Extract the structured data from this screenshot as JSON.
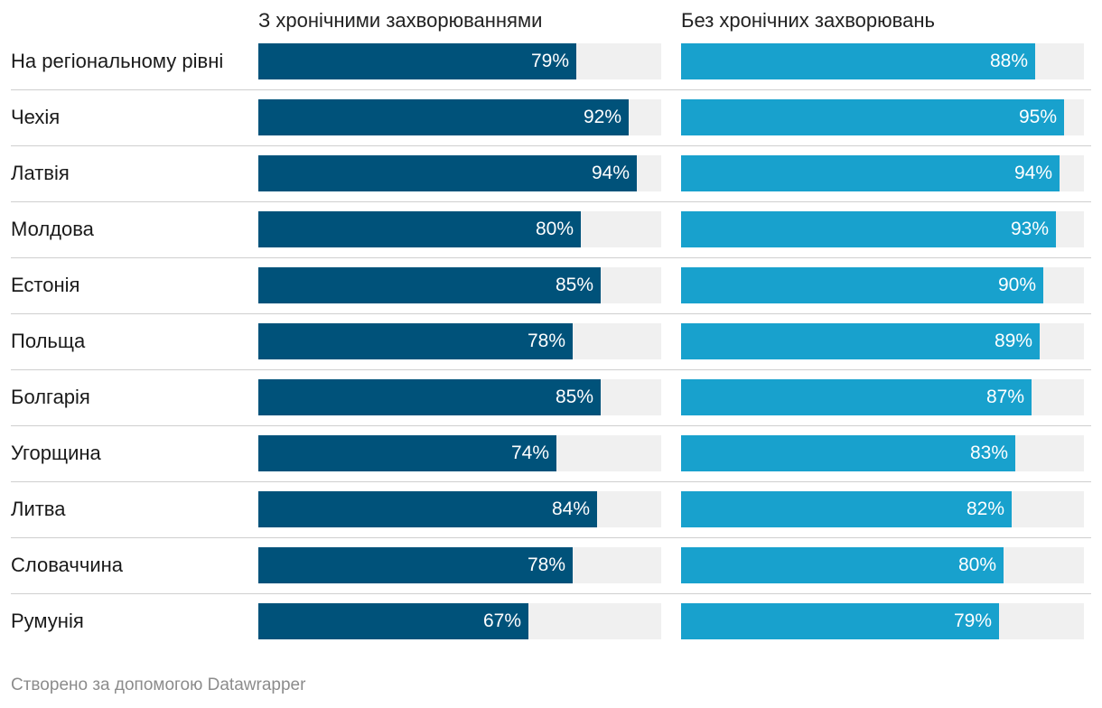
{
  "chart_data": {
    "type": "bar",
    "title": "",
    "xlabel": "",
    "ylabel": "",
    "ylim": [
      0,
      100
    ],
    "categories": [
      "На регіональному рівні",
      "Чехія",
      "Латвія",
      "Молдова",
      "Естонія",
      "Польща",
      "Болгарія",
      "Угорщина",
      "Литва",
      "Словаччина",
      "Румунія"
    ],
    "series": [
      {
        "name": "З хронічними захворюваннями",
        "color": "#00527a",
        "values": [
          79,
          92,
          94,
          80,
          85,
          78,
          85,
          74,
          84,
          78,
          67
        ]
      },
      {
        "name": "Без хронічних захворювань",
        "color": "#18a1cd",
        "values": [
          88,
          95,
          94,
          93,
          90,
          89,
          87,
          83,
          82,
          80,
          79
        ]
      }
    ],
    "value_suffix": "%"
  },
  "footer": {
    "credit": "Створено за допомогою Datawrapper"
  }
}
